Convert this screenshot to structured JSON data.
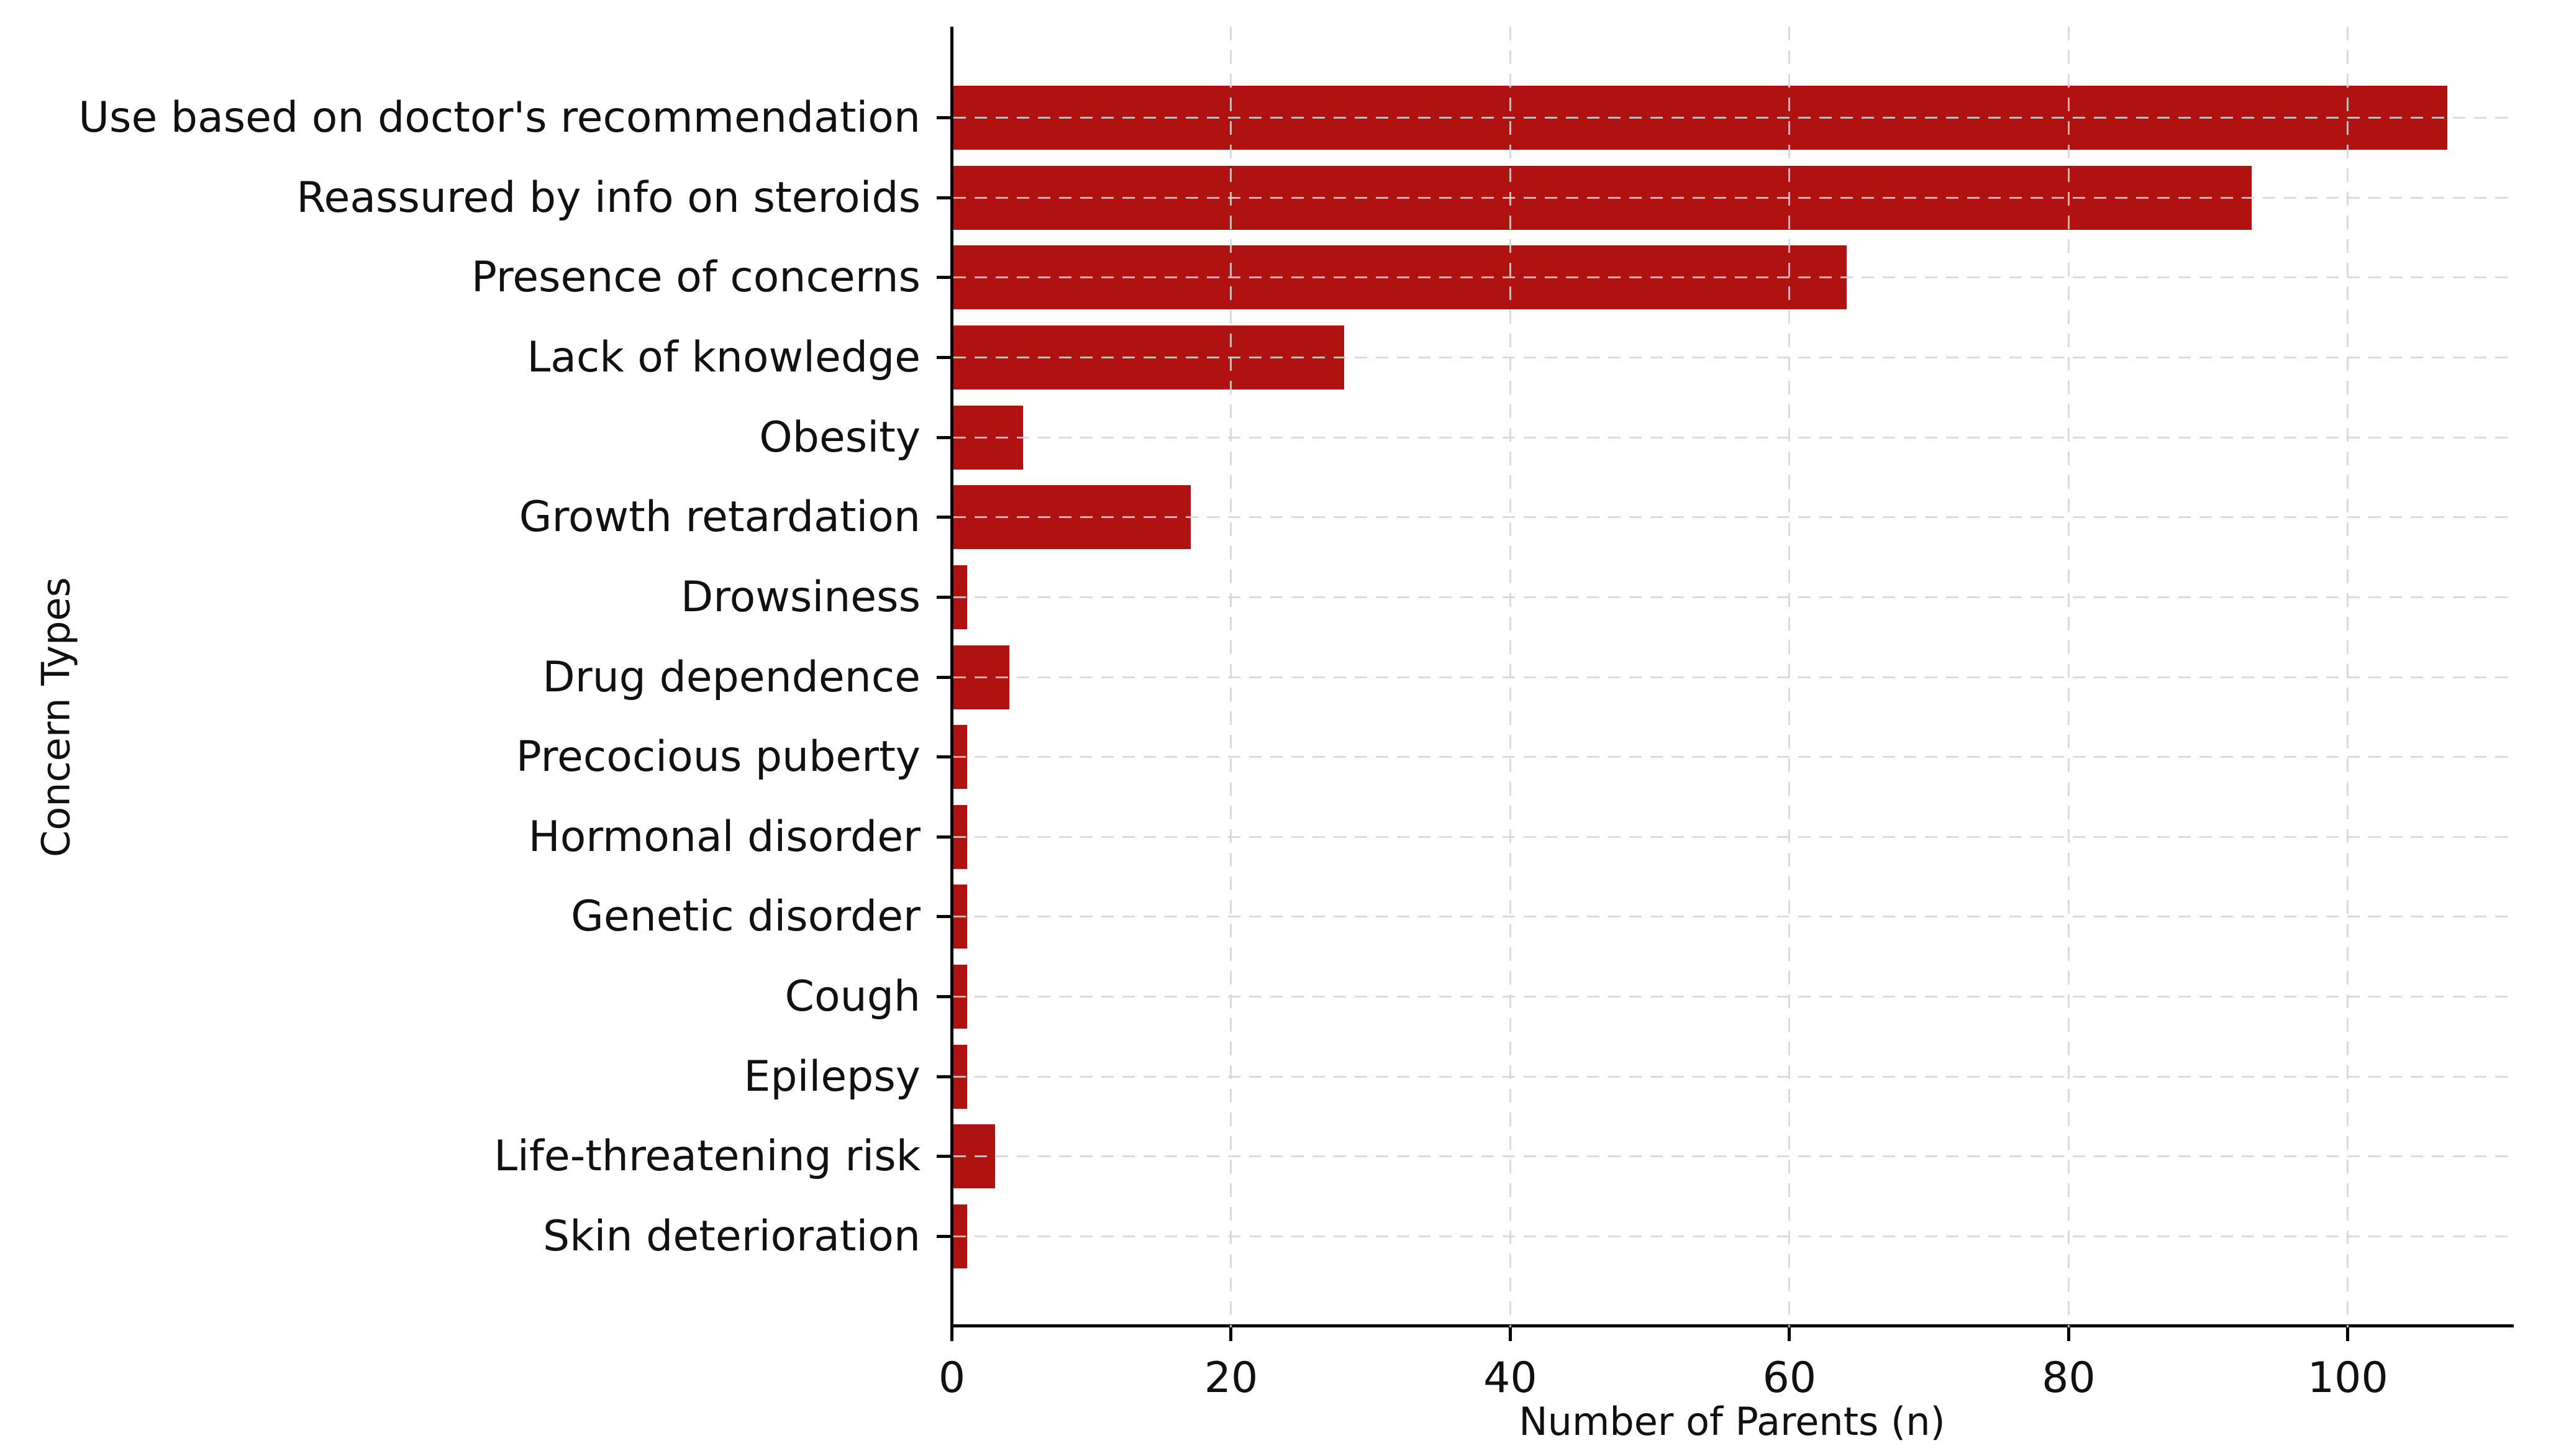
{
  "chart_data": {
    "type": "bar",
    "orientation": "horizontal",
    "title": "",
    "xlabel": "Number of Parents (n)",
    "ylabel": "Concern Types",
    "categories": [
      "Use based on doctor's recommendation",
      "Reassured by info on steroids",
      "Presence of concerns",
      "Lack of knowledge",
      "Obesity",
      "Growth retardation",
      "Drowsiness",
      "Drug dependence",
      "Precocious puberty",
      "Hormonal disorder",
      "Genetic disorder",
      "Cough",
      "Epilepsy",
      "Life-threatening risk",
      "Skin deterioration"
    ],
    "values": [
      107,
      93,
      64,
      28,
      5,
      17,
      1,
      4,
      1,
      1,
      1,
      1,
      1,
      3,
      1
    ],
    "xticks": [
      0,
      20,
      40,
      60,
      80,
      100
    ],
    "xlim": [
      0,
      112
    ],
    "bar_color": "#b01111",
    "gridline_color": "#d5d5d5",
    "grid_style": "dashed",
    "background_color": "#ffffff",
    "legend": "none"
  }
}
